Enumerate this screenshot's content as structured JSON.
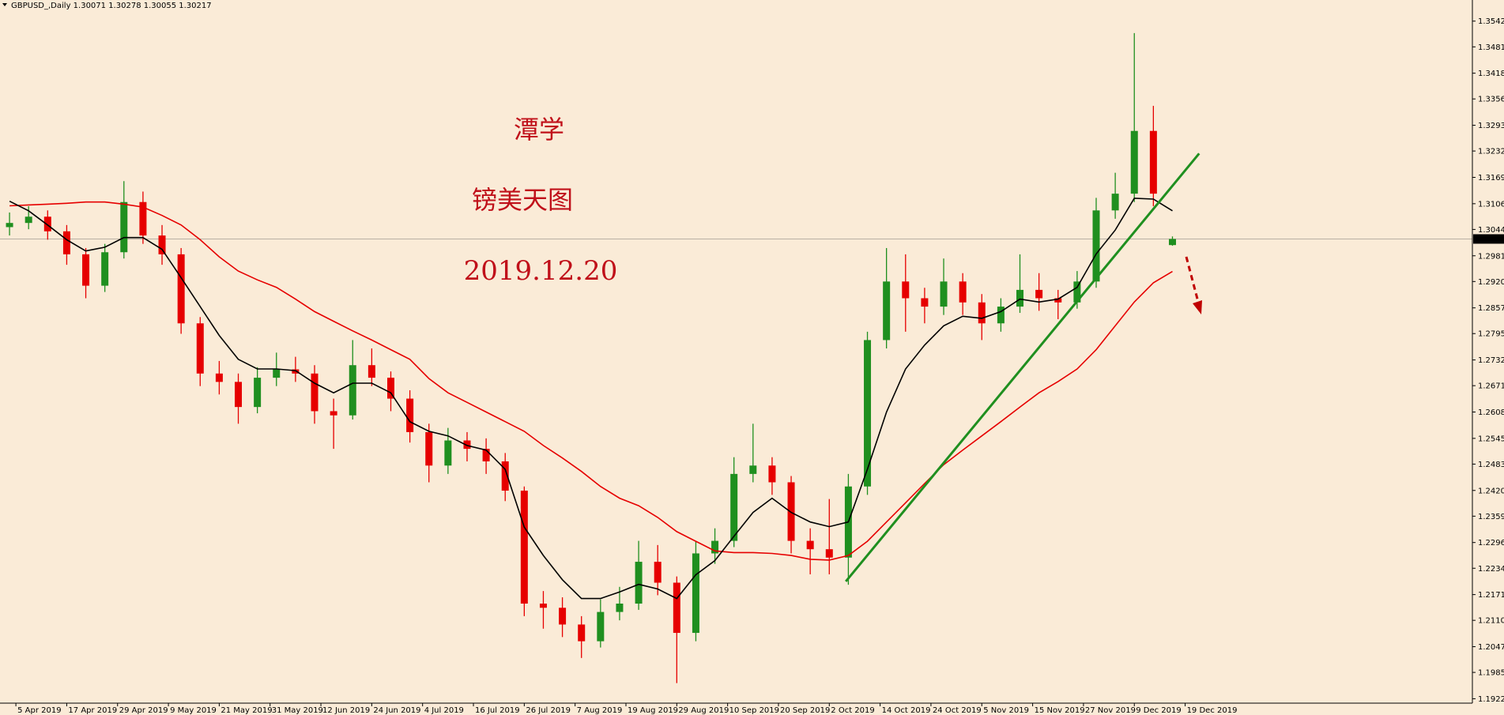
{
  "chart_data": {
    "type": "candlestick",
    "header": "GBPUSD_,Daily  1.30071 1.30278 1.30055 1.30217",
    "annotations": [
      "潭学",
      "镑美天图",
      "2019.12.20"
    ],
    "up_color": "#1f8f1f",
    "down_color": "#e60000",
    "background": "#faebd7",
    "x": [
      1,
      4,
      7,
      10,
      13,
      16,
      19,
      22,
      25,
      28,
      31,
      34,
      37,
      40,
      43,
      46,
      49,
      52,
      55,
      58,
      61,
      64,
      67,
      70,
      73,
      76,
      79,
      82,
      85,
      88,
      91,
      94,
      97,
      100,
      103,
      106,
      109,
      112,
      115,
      118,
      121,
      124,
      127,
      130,
      133,
      136,
      139,
      142,
      145,
      148,
      151,
      154,
      157,
      160,
      163,
      166,
      169,
      172,
      175,
      178,
      181,
      184
    ],
    "candles": [
      [
        1.305,
        1.3085,
        1.303,
        1.306
      ],
      [
        1.306,
        1.31,
        1.3045,
        1.3075
      ],
      [
        1.3075,
        1.309,
        1.302,
        1.304
      ],
      [
        1.304,
        1.3055,
        1.296,
        1.2985
      ],
      [
        1.2985,
        1.3,
        1.288,
        1.291
      ],
      [
        1.291,
        1.301,
        1.2895,
        1.299
      ],
      [
        1.299,
        1.316,
        1.2975,
        1.311
      ],
      [
        1.311,
        1.3135,
        1.301,
        1.303
      ],
      [
        1.303,
        1.3055,
        1.296,
        1.2985
      ],
      [
        1.2985,
        1.3,
        1.2795,
        1.282
      ],
      [
        1.282,
        1.2835,
        1.267,
        1.27
      ],
      [
        1.27,
        1.273,
        1.265,
        1.268
      ],
      [
        1.268,
        1.27,
        1.258,
        1.262
      ],
      [
        1.262,
        1.2715,
        1.2605,
        1.269
      ],
      [
        1.269,
        1.275,
        1.267,
        1.271
      ],
      [
        1.271,
        1.274,
        1.268,
        1.27
      ],
      [
        1.27,
        1.272,
        1.258,
        1.261
      ],
      [
        1.261,
        1.264,
        1.252,
        1.26
      ],
      [
        1.26,
        1.278,
        1.259,
        1.272
      ],
      [
        1.272,
        1.276,
        1.267,
        1.269
      ],
      [
        1.269,
        1.2705,
        1.261,
        1.264
      ],
      [
        1.264,
        1.266,
        1.2535,
        1.256
      ],
      [
        1.256,
        1.258,
        1.244,
        1.248
      ],
      [
        1.248,
        1.257,
        1.246,
        1.254
      ],
      [
        1.254,
        1.256,
        1.249,
        1.252
      ],
      [
        1.252,
        1.2545,
        1.246,
        1.249
      ],
      [
        1.249,
        1.251,
        1.2395,
        1.242
      ],
      [
        1.242,
        1.243,
        1.212,
        1.215
      ],
      [
        1.215,
        1.218,
        1.209,
        1.214
      ],
      [
        1.214,
        1.2165,
        1.207,
        1.21
      ],
      [
        1.21,
        1.212,
        1.202,
        1.206
      ],
      [
        1.206,
        1.216,
        1.2045,
        1.213
      ],
      [
        1.213,
        1.219,
        1.211,
        1.215
      ],
      [
        1.215,
        1.23,
        1.2135,
        1.225
      ],
      [
        1.225,
        1.229,
        1.217,
        1.22
      ],
      [
        1.22,
        1.2215,
        1.196,
        1.208
      ],
      [
        1.208,
        1.23,
        1.206,
        1.227
      ],
      [
        1.227,
        1.233,
        1.2245,
        1.23
      ],
      [
        1.23,
        1.25,
        1.2285,
        1.246
      ],
      [
        1.246,
        1.258,
        1.244,
        1.248
      ],
      [
        1.248,
        1.25,
        1.241,
        1.244
      ],
      [
        1.244,
        1.2455,
        1.227,
        1.23
      ],
      [
        1.23,
        1.233,
        1.222,
        1.228
      ],
      [
        1.228,
        1.24,
        1.222,
        1.226
      ],
      [
        1.226,
        1.246,
        1.2195,
        1.243
      ],
      [
        1.243,
        1.28,
        1.241,
        1.278
      ],
      [
        1.278,
        1.3,
        1.276,
        1.292
      ],
      [
        1.292,
        1.2985,
        1.28,
        1.288
      ],
      [
        1.288,
        1.2905,
        1.282,
        1.286
      ],
      [
        1.286,
        1.2975,
        1.284,
        1.292
      ],
      [
        1.292,
        1.294,
        1.284,
        1.287
      ],
      [
        1.287,
        1.289,
        1.278,
        1.282
      ],
      [
        1.282,
        1.288,
        1.28,
        1.286
      ],
      [
        1.286,
        1.2985,
        1.2845,
        1.29
      ],
      [
        1.29,
        1.294,
        1.285,
        1.288
      ],
      [
        1.288,
        1.29,
        1.283,
        1.287
      ],
      [
        1.287,
        1.2945,
        1.2855,
        1.292
      ],
      [
        1.292,
        1.312,
        1.2905,
        1.309
      ],
      [
        1.309,
        1.318,
        1.307,
        1.313
      ],
      [
        1.313,
        1.3514,
        1.311,
        1.328
      ],
      [
        1.328,
        1.334,
        1.31,
        1.313
      ],
      [
        1.30071,
        1.30278,
        1.30055,
        1.30217
      ]
    ],
    "ma_fast": {
      "color": "#000000",
      "values": [
        1.3112,
        1.3089,
        1.3055,
        1.302,
        1.2993,
        1.3002,
        1.3025,
        1.3025,
        1.2997,
        1.2929,
        1.286,
        1.2791,
        1.2734,
        1.2711,
        1.2711,
        1.2707,
        1.2677,
        1.2654,
        1.2677,
        1.2677,
        1.2654,
        1.2585,
        1.2562,
        1.2551,
        1.2528,
        1.2517,
        1.2471,
        1.2333,
        1.2265,
        1.2207,
        1.2162,
        1.2162,
        1.2178,
        1.2196,
        1.2185,
        1.2162,
        1.2219,
        1.2253,
        1.2311,
        1.2368,
        1.2402,
        1.2368,
        1.2345,
        1.2334,
        1.2345,
        1.2471,
        1.2608,
        1.2711,
        1.2768,
        1.2814,
        1.2837,
        1.2832,
        1.2848,
        1.2878,
        1.2871,
        1.2878,
        1.2906,
        1.2986,
        1.3043,
        1.3119,
        1.3117,
        1.3089
      ]
    },
    "ma_slow": {
      "color": "#e60000",
      "values": [
        1.3101,
        1.3103,
        1.3105,
        1.3107,
        1.311,
        1.311,
        1.3105,
        1.3098,
        1.3078,
        1.3055,
        1.302,
        1.2979,
        1.2945,
        1.2924,
        1.2906,
        1.2878,
        1.2848,
        1.2825,
        1.2802,
        1.278,
        1.2757,
        1.2734,
        1.2688,
        1.2654,
        1.2631,
        1.2608,
        1.2585,
        1.2562,
        1.2528,
        1.2498,
        1.2466,
        1.243,
        1.2402,
        1.2384,
        1.2356,
        1.2322,
        1.2299,
        1.2276,
        1.2272,
        1.2272,
        1.227,
        1.2265,
        1.2256,
        1.2254,
        1.2265,
        1.2299,
        1.2345,
        1.2391,
        1.2437,
        1.2482,
        1.2517,
        1.2551,
        1.2585,
        1.262,
        1.2654,
        1.2681,
        1.2711,
        1.2757,
        1.2814,
        1.2871,
        1.2917,
        1.2944
      ]
    },
    "trend_line": {
      "color": "#1f8f1f",
      "x": [
        132.6,
        188.2
      ],
      "y": [
        1.2203,
        1.3226
      ]
    },
    "current_price": 1.30217,
    "xlim": [
      -0.5,
      231.2
    ],
    "ylim": [
      1.1912,
      1.3593
    ],
    "yticks": [
      1.35425,
      {
        "value": 1.3481,
        "label": "1.34810"
      },
      {
        "value": 1.3418,
        "label": "1.34180"
      },
      1.33565,
      1.32935,
      {
        "value": 1.3232,
        "label": "1.32320"
      },
      {
        "value": 1.3169,
        "label": "1.31690"
      },
      {
        "value": 1.3106,
        "label": "1.31060"
      },
      1.30445,
      1.29815,
      {
        "value": 1.292,
        "label": "1.29200"
      },
      {
        "value": 1.2857,
        "label": "1.28570"
      },
      1.27955,
      1.27325,
      {
        "value": 1.2671,
        "label": "1.26710"
      },
      {
        "value": 1.2608,
        "label": "1.26080"
      },
      {
        "value": 1.2545,
        "label": "1.25450"
      },
      1.24835,
      1.24205,
      {
        "value": 1.2359,
        "label": "1.23590"
      },
      {
        "value": 1.2296,
        "label": "1.22960"
      },
      1.22345,
      1.21715,
      {
        "value": 1.211,
        "label": "1.21100"
      },
      {
        "value": 1.2047,
        "label": "1.20470"
      },
      1.19855,
      1.19225
    ],
    "xticks": [
      {
        "value": 2,
        "label": "5 Apr 2019"
      },
      {
        "value": 10,
        "label": "17 Apr 2019"
      },
      {
        "value": 18,
        "label": "29 Apr 2019"
      },
      {
        "value": 26,
        "label": "9 May 2019"
      },
      {
        "value": 34,
        "label": "21 May 2019"
      },
      {
        "value": 42,
        "label": "31 May 2019"
      },
      {
        "value": 50,
        "label": "12 Jun 2019"
      },
      {
        "value": 58,
        "label": "24 Jun 2019"
      },
      {
        "value": 66,
        "label": "4 Jul 2019"
      },
      {
        "value": 74,
        "label": "16 Jul 2019"
      },
      {
        "value": 82,
        "label": "26 Jul 2019"
      },
      {
        "value": 90,
        "label": "7 Aug 2019"
      },
      {
        "value": 98,
        "label": "19 Aug 2019"
      },
      {
        "value": 106,
        "label": "29 Aug 2019"
      },
      {
        "value": 114,
        "label": "10 Sep 2019"
      },
      {
        "value": 122,
        "label": "20 Sep 2019"
      },
      {
        "value": 130,
        "label": "2 Oct 2019"
      },
      {
        "value": 138,
        "label": "14 Oct 2019"
      },
      {
        "value": 146,
        "label": "24 Oct 2019"
      },
      {
        "value": 154,
        "label": "5 Nov 2019"
      },
      {
        "value": 162,
        "label": "15 Nov 2019"
      },
      {
        "value": 170,
        "label": "27 Nov 2019"
      },
      {
        "value": 178,
        "label": "9 Dec 2019"
      },
      {
        "value": 186,
        "label": "19 Dec 2019"
      }
    ]
  }
}
